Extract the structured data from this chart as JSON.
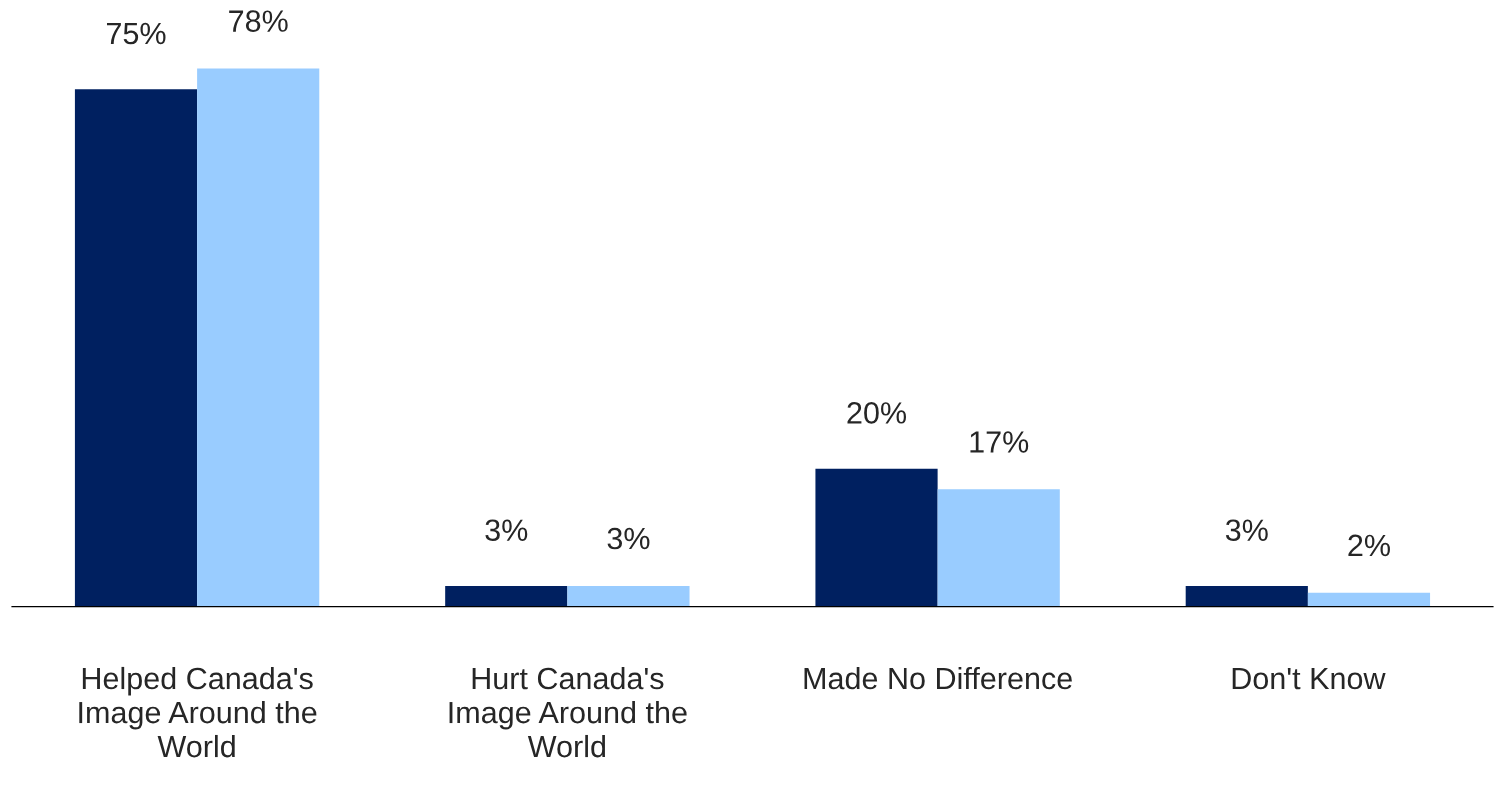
{
  "chart_data": {
    "type": "bar",
    "categories": [
      "Helped Canada's Image Around the World",
      "Hurt Canada's Image Around the World",
      "Made No Difference",
      "Don't Know"
    ],
    "series": [
      {
        "color": "#002060",
        "values": [
          75,
          3,
          20,
          3
        ],
        "value_labels": [
          "75%",
          "3%",
          "20%",
          "3%"
        ]
      },
      {
        "color": "#99ccff",
        "values": [
          78,
          3,
          17,
          2
        ],
        "value_labels": [
          "78%",
          "3%",
          "17%",
          "2%"
        ]
      }
    ],
    "grid": false,
    "legend": false
  }
}
